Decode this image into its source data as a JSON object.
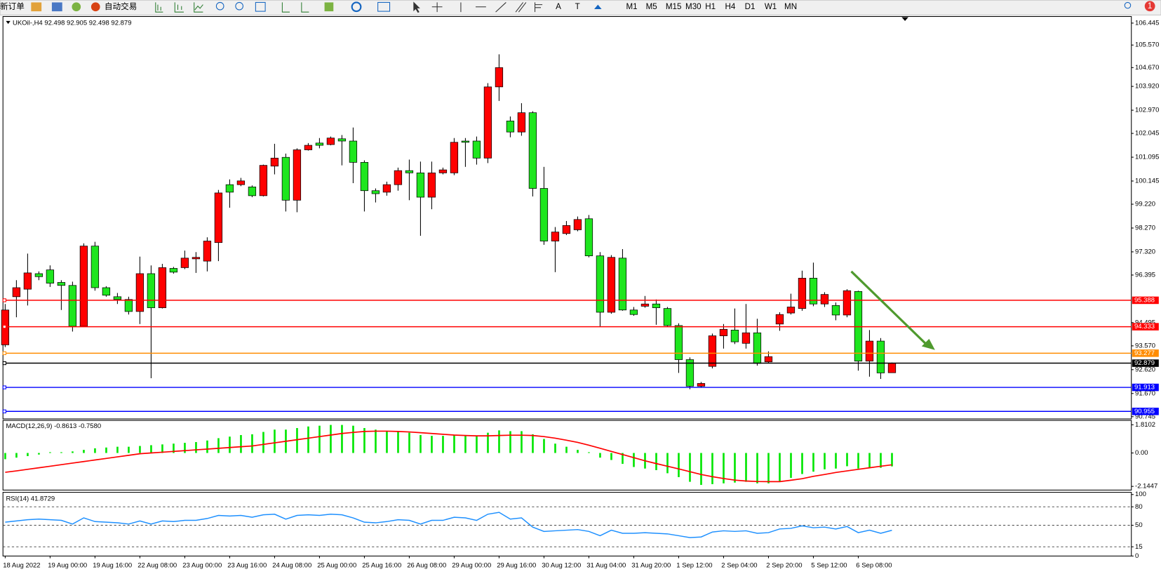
{
  "toolbar": {
    "new_order": "新订单",
    "auto_trade": "自动交易",
    "text_tools": [
      "A",
      "T"
    ],
    "timeframes": [
      "M1",
      "M5",
      "M15",
      "M30",
      "H1",
      "H4",
      "D1",
      "W1",
      "MN"
    ],
    "badge": "1"
  },
  "chart_data": [
    {
      "type": "candlestick",
      "header": "UKOil-,H4  92.498 92.905 92.498 92.879",
      "categories": [
        "18 Aug 2022",
        null,
        null,
        null,
        "19 Aug 00:00",
        null,
        null,
        null,
        "19 Aug 16:00",
        null,
        null,
        null,
        "22 Aug 08:00",
        null,
        null,
        null,
        "23 Aug 00:00",
        null,
        null,
        null,
        "23 Aug 16:00",
        null,
        null,
        null,
        "24 Aug 08:00",
        null,
        null,
        null,
        "25 Aug 00:00",
        null,
        null,
        null,
        "25 Aug 16:00",
        null,
        null,
        null,
        "26 Aug 08:00",
        null,
        null,
        null,
        "29 Aug 00:00",
        null,
        null,
        null,
        "29 Aug 16:00",
        null,
        null,
        null,
        "30 Aug 12:00",
        null,
        null,
        null,
        "31 Aug 04:00",
        null,
        null,
        null,
        "31 Aug 20:00",
        null,
        null,
        null,
        "1 Sep 12:00",
        null,
        null,
        null,
        "2 Sep 04:00",
        null,
        null,
        null,
        "2 Sep 20:00",
        null,
        null,
        null,
        "5 Sep 12:00",
        null,
        null,
        null,
        "6 Sep 08:00",
        null,
        null,
        null
      ],
      "open": [
        93.61,
        95.53,
        95.83,
        96.45,
        96.6,
        96.1,
        95.98,
        94.35,
        97.55,
        95.89,
        95.53,
        95.42,
        94.94,
        96.45,
        95.09,
        96.66,
        96.69,
        97.04,
        96.95,
        97.69,
        100.0,
        100.0,
        99.91,
        99.56,
        100.74,
        101.09,
        99.38,
        101.39,
        101.66,
        101.6,
        101.83,
        101.74,
        100.89,
        99.76,
        99.7,
        100.0,
        100.56,
        100.47,
        99.5,
        100.47,
        100.47,
        101.74,
        101.74,
        101.06,
        103.9,
        102.54,
        102.1,
        102.87,
        99.85,
        97.75,
        98.05,
        98.2,
        98.64,
        97.16,
        94.91,
        97.07,
        95.0,
        95.15,
        95.24,
        95.06,
        94.38,
        93.02,
        91.96,
        92.75,
        93.97,
        94.2,
        93.67,
        94.09,
        92.93,
        94.44,
        94.88,
        95.06,
        96.27,
        95.24,
        95.18,
        94.8,
        95.74,
        92.96,
        93.76,
        92.498
      ],
      "high": [
        95.24,
        96.19,
        97.25,
        96.54,
        96.78,
        96.19,
        96.13,
        97.66,
        97.72,
        95.95,
        95.68,
        95.53,
        97.13,
        96.78,
        96.84,
        96.72,
        97.37,
        97.31,
        97.9,
        99.79,
        100.21,
        100.27,
        99.97,
        100.8,
        101.63,
        101.24,
        101.45,
        101.66,
        101.86,
        101.92,
        101.98,
        102.28,
        100.97,
        99.85,
        100.12,
        100.68,
        101.0,
        100.92,
        100.92,
        100.68,
        101.86,
        101.86,
        101.92,
        104.05,
        105.2,
        102.72,
        103.25,
        102.93,
        100.71,
        98.31,
        98.55,
        98.73,
        98.79,
        97.31,
        97.19,
        97.43,
        95.12,
        95.56,
        95.42,
        95.12,
        94.47,
        93.11,
        92.13,
        94.06,
        94.44,
        95.06,
        95.24,
        94.65,
        93.35,
        94.91,
        95.65,
        96.57,
        96.89,
        95.71,
        95.3,
        95.83,
        95.77,
        94.2,
        93.88,
        92.905
      ],
      "low": [
        93.52,
        94.71,
        95.18,
        96.19,
        95.92,
        95.0,
        94.14,
        94.35,
        95.77,
        95.53,
        95.24,
        94.82,
        94.44,
        92.28,
        95.06,
        96.45,
        96.63,
        96.48,
        96.54,
        96.95,
        99.08,
        99.94,
        99.5,
        99.53,
        100.41,
        98.93,
        98.9,
        101.36,
        101.45,
        101.57,
        100.77,
        100.06,
        98.93,
        99.29,
        99.56,
        99.76,
        99.38,
        97.96,
        99.02,
        100.41,
        100.38,
        100.71,
        100.8,
        100.86,
        103.34,
        101.89,
        101.95,
        99.53,
        97.6,
        96.51,
        97.99,
        98.14,
        97.1,
        94.32,
        94.85,
        94.97,
        94.77,
        95.09,
        94.41,
        94.32,
        92.49,
        91.84,
        91.9,
        92.67,
        93.46,
        93.64,
        93.46,
        92.78,
        92.87,
        94.17,
        94.82,
        94.97,
        95.15,
        95.12,
        94.59,
        94.71,
        92.58,
        92.34,
        92.25,
        92.498
      ],
      "close": [
        95.0,
        95.89,
        96.48,
        96.33,
        96.07,
        95.98,
        94.35,
        97.55,
        95.89,
        95.59,
        95.42,
        94.94,
        96.45,
        95.09,
        96.69,
        96.51,
        97.07,
        97.1,
        97.75,
        99.67,
        99.7,
        100.15,
        99.56,
        100.77,
        101.06,
        99.38,
        101.39,
        101.57,
        101.57,
        101.86,
        101.74,
        100.89,
        99.76,
        99.64,
        100.0,
        100.56,
        100.47,
        99.5,
        100.47,
        100.59,
        101.69,
        101.69,
        101.06,
        103.9,
        104.67,
        102.1,
        102.87,
        99.85,
        97.75,
        98.11,
        98.37,
        98.61,
        97.16,
        94.91,
        97.1,
        95.0,
        94.82,
        95.24,
        95.09,
        94.38,
        93.02,
        91.96,
        92.07,
        93.97,
        94.23,
        93.73,
        94.09,
        92.87,
        93.14,
        94.82,
        95.12,
        96.27,
        95.24,
        95.62,
        94.8,
        95.77,
        92.96,
        93.76,
        92.49,
        92.879
      ],
      "colors": {
        "up": "#ff0000",
        "down": "#1ee61e"
      },
      "ylim": [
        90.655,
        106.62
      ],
      "yticks": [
        106.445,
        {
          "value": 105.57,
          "label": "105.570"
        },
        {
          "value": 104.67,
          "label": "104.670"
        },
        {
          "value": 103.92,
          "label": "103.920"
        },
        {
          "value": 102.97,
          "label": "102.970"
        },
        102.045,
        101.095,
        100.145,
        {
          "value": 99.22,
          "label": "99.220"
        },
        {
          "value": 98.27,
          "label": "98.270"
        },
        {
          "value": 97.32,
          "label": "97.320"
        },
        96.395,
        94.495,
        {
          "value": 93.57,
          "label": "93.570"
        },
        {
          "value": 92.62,
          "label": "92.620"
        },
        {
          "value": 91.67,
          "label": "91.670"
        },
        90.745
      ],
      "hlines": [
        {
          "value": 95.388,
          "color": "#ff0000"
        },
        {
          "value": 94.333,
          "color": "#ff0000"
        },
        {
          "value": 93.277,
          "color": "#ff8c00"
        },
        {
          "value": 92.879,
          "color": "#000000"
        },
        {
          "value": 91.913,
          "color": "#0000ff"
        },
        {
          "value": 90.955,
          "color": "#0000ff"
        }
      ]
    },
    {
      "type": "macd",
      "title": "MACD(12,26,9) -0.8613 -0.7580",
      "histogram": {
        "color": "#00e600",
        "values": [
          -0.4,
          -0.3,
          -0.2,
          -0.1,
          0.05,
          0.05,
          0.1,
          0.2,
          0.3,
          0.35,
          0.4,
          0.4,
          0.45,
          0.5,
          0.55,
          0.6,
          0.65,
          0.7,
          0.8,
          0.95,
          1.05,
          1.15,
          1.2,
          1.35,
          1.5,
          1.5,
          1.6,
          1.7,
          1.75,
          1.8,
          1.8,
          1.75,
          1.6,
          1.5,
          1.4,
          1.35,
          1.3,
          1.15,
          1.1,
          1.1,
          1.15,
          1.15,
          1.1,
          1.3,
          1.45,
          1.4,
          1.4,
          1.2,
          0.9,
          0.6,
          0.4,
          0.2,
          0.05,
          -0.3,
          -0.45,
          -0.7,
          -0.9,
          -1.0,
          -1.1,
          -1.3,
          -1.55,
          -1.85,
          -2.05,
          -2.0,
          -1.95,
          -1.9,
          -1.85,
          -1.95,
          -1.95,
          -1.8,
          -1.6,
          -1.35,
          -1.2,
          -1.05,
          -1.0,
          -0.85,
          -1.0,
          -0.95,
          -0.95,
          -0.8613
        ]
      },
      "signal": {
        "color": "#ff0000",
        "values": [
          -1.24,
          -1.15,
          -1.05,
          -0.95,
          -0.85,
          -0.75,
          -0.65,
          -0.55,
          -0.45,
          -0.35,
          -0.25,
          -0.15,
          -0.05,
          0.0,
          0.05,
          0.1,
          0.15,
          0.2,
          0.25,
          0.3,
          0.35,
          0.4,
          0.45,
          0.55,
          0.65,
          0.75,
          0.85,
          0.95,
          1.05,
          1.15,
          1.25,
          1.32,
          1.38,
          1.4,
          1.4,
          1.38,
          1.35,
          1.3,
          1.25,
          1.2,
          1.15,
          1.12,
          1.1,
          1.1,
          1.12,
          1.14,
          1.14,
          1.12,
          1.05,
          0.95,
          0.82,
          0.68,
          0.5,
          0.3,
          0.1,
          -0.1,
          -0.3,
          -0.5,
          -0.68,
          -0.85,
          -1.02,
          -1.2,
          -1.38,
          -1.52,
          -1.64,
          -1.74,
          -1.8,
          -1.83,
          -1.84,
          -1.84,
          -1.75,
          -1.65,
          -1.5,
          -1.38,
          -1.25,
          -1.15,
          -1.05,
          -0.95,
          -0.85,
          -0.758
        ]
      },
      "ylim": [
        -2.38,
        2.09
      ],
      "yticks": [
        1.8102,
        {
          "value": 0,
          "label": "0.00"
        },
        -2.1447
      ]
    },
    {
      "type": "line",
      "title": "RSI(14) 41.8729",
      "color": "#1e90ff",
      "grid": true,
      "values": [
        55,
        57,
        59,
        60,
        59,
        58,
        52,
        62,
        56,
        55,
        54,
        52,
        57,
        52,
        57,
        56,
        58,
        58,
        61,
        66,
        65,
        66,
        63,
        67,
        68,
        60,
        66,
        67,
        66,
        68,
        67,
        62,
        55,
        54,
        56,
        59,
        58,
        52,
        58,
        58,
        63,
        62,
        58,
        68,
        71,
        60,
        62,
        47,
        40,
        41,
        42,
        43,
        40,
        33,
        42,
        37,
        37,
        38,
        37,
        36,
        33,
        30,
        31,
        39,
        41,
        40,
        41,
        37,
        38,
        44,
        45,
        49,
        46,
        47,
        44,
        48,
        38,
        42,
        37,
        41.8729
      ],
      "ylim": [
        0,
        100
      ],
      "yticks": [
        100,
        80,
        50,
        15,
        0
      ]
    }
  ]
}
